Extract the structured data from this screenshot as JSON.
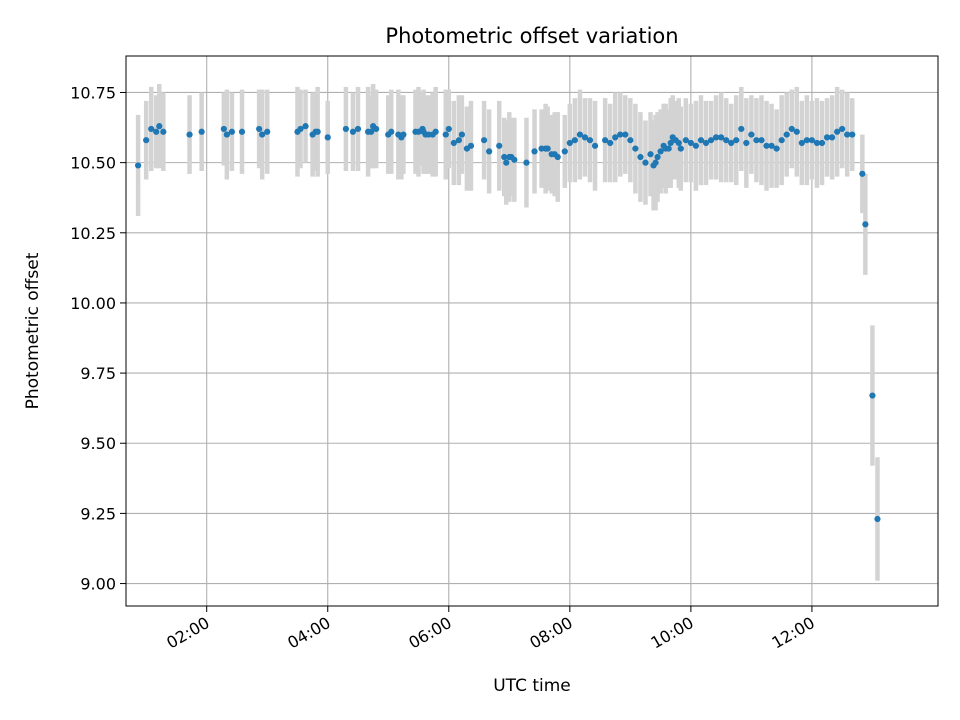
{
  "chart_data": {
    "type": "scatter",
    "title": "Photometric offset variation",
    "xlabel": "UTC time",
    "ylabel": "Photometric offset",
    "xlim": [
      "00:40",
      "14:05"
    ],
    "ylim": [
      8.92,
      10.88
    ],
    "grid": true,
    "x_ticks": [
      "02:00",
      "04:00",
      "06:00",
      "08:00",
      "10:00",
      "12:00"
    ],
    "y_ticks": [
      "9.00",
      "9.25",
      "9.50",
      "9.75",
      "10.00",
      "10.25",
      "10.50",
      "10.75"
    ],
    "colors": {
      "point": "#1f77b4",
      "errorbar": "#d3d3d3",
      "grid": "#b0b0b0"
    },
    "series": [
      {
        "x": [
          "00:52",
          "01:00",
          "01:05",
          "01:10",
          "01:13",
          "01:17",
          "01:43",
          "01:55",
          "02:17",
          "02:20",
          "02:25",
          "02:35",
          "02:52",
          "02:55",
          "03:00",
          "03:30",
          "03:33",
          "03:38",
          "03:45",
          "03:48",
          "03:50",
          "04:00",
          "04:18",
          "04:25",
          "04:30",
          "04:40",
          "04:43",
          "04:45",
          "04:48",
          "05:00",
          "05:03",
          "05:10",
          "05:13",
          "05:15",
          "05:27",
          "05:30",
          "05:34",
          "05:35",
          "05:37",
          "05:40",
          "05:44",
          "05:47",
          "05:57",
          "06:00",
          "06:05",
          "06:10",
          "06:13",
          "06:18",
          "06:22",
          "06:35",
          "06:40",
          "06:50",
          "06:55",
          "06:57",
          "07:00",
          "07:02",
          "07:05",
          "07:17",
          "07:25",
          "07:32",
          "07:36",
          "07:38",
          "07:42",
          "07:45",
          "07:48",
          "07:55",
          "08:00",
          "08:05",
          "08:10",
          "08:15",
          "08:20",
          "08:25",
          "08:35",
          "08:40",
          "08:45",
          "08:50",
          "08:55",
          "09:00",
          "09:05",
          "09:10",
          "09:15",
          "09:20",
          "09:23",
          "09:25",
          "09:27",
          "09:30",
          "09:33",
          "09:35",
          "09:38",
          "09:40",
          "09:42",
          "09:45",
          "09:48",
          "09:50",
          "09:55",
          "10:00",
          "10:05",
          "10:10",
          "10:15",
          "10:20",
          "10:25",
          "10:30",
          "10:35",
          "10:40",
          "10:45",
          "10:50",
          "10:55",
          "11:00",
          "11:05",
          "11:10",
          "11:15",
          "11:20",
          "11:25",
          "11:30",
          "11:35",
          "11:40",
          "11:45",
          "11:50",
          "11:55",
          "12:00",
          "12:05",
          "12:10",
          "12:15",
          "12:20",
          "12:25",
          "12:30",
          "12:35",
          "12:40",
          "12:50",
          "12:53",
          "13:00",
          "13:05"
        ],
        "y": [
          10.49,
          10.58,
          10.62,
          10.61,
          10.63,
          10.61,
          10.6,
          10.61,
          10.62,
          10.6,
          10.61,
          10.61,
          10.62,
          10.6,
          10.61,
          10.61,
          10.62,
          10.63,
          10.6,
          10.61,
          10.61,
          10.59,
          10.62,
          10.61,
          10.62,
          10.61,
          10.61,
          10.63,
          10.62,
          10.6,
          10.61,
          10.6,
          10.59,
          10.6,
          10.61,
          10.61,
          10.62,
          10.61,
          10.6,
          10.6,
          10.6,
          10.61,
          10.6,
          10.62,
          10.57,
          10.58,
          10.6,
          10.55,
          10.56,
          10.58,
          10.54,
          10.56,
          10.52,
          10.5,
          10.52,
          10.52,
          10.51,
          10.5,
          10.54,
          10.55,
          10.55,
          10.55,
          10.53,
          10.53,
          10.52,
          10.54,
          10.57,
          10.58,
          10.6,
          10.59,
          10.58,
          10.56,
          10.58,
          10.57,
          10.59,
          10.6,
          10.6,
          10.58,
          10.55,
          10.52,
          10.5,
          10.53,
          10.49,
          10.5,
          10.52,
          10.54,
          10.56,
          10.55,
          10.55,
          10.57,
          10.59,
          10.58,
          10.57,
          10.55,
          10.58,
          10.57,
          10.56,
          10.58,
          10.57,
          10.58,
          10.59,
          10.59,
          10.58,
          10.57,
          10.58,
          10.62,
          10.57,
          10.6,
          10.58,
          10.58,
          10.56,
          10.56,
          10.55,
          10.58,
          10.6,
          10.62,
          10.61,
          10.57,
          10.58,
          10.58,
          10.57,
          10.57,
          10.59,
          10.59,
          10.61,
          10.62,
          10.6,
          10.6,
          10.46,
          10.28,
          9.67,
          9.23
        ],
        "yerr": [
          0.18,
          0.14,
          0.15,
          0.13,
          0.15,
          0.14,
          0.14,
          0.14,
          0.13,
          0.16,
          0.14,
          0.15,
          0.14,
          0.16,
          0.15,
          0.16,
          0.14,
          0.13,
          0.15,
          0.14,
          0.16,
          0.13,
          0.15,
          0.14,
          0.15,
          0.16,
          0.13,
          0.15,
          0.14,
          0.14,
          0.15,
          0.16,
          0.15,
          0.14,
          0.15,
          0.16,
          0.13,
          0.15,
          0.14,
          0.14,
          0.15,
          0.16,
          0.16,
          0.14,
          0.15,
          0.16,
          0.14,
          0.15,
          0.16,
          0.14,
          0.15,
          0.16,
          0.14,
          0.15,
          0.16,
          0.14,
          0.15,
          0.16,
          0.15,
          0.14,
          0.16,
          0.15,
          0.14,
          0.15,
          0.16,
          0.13,
          0.14,
          0.15,
          0.16,
          0.14,
          0.15,
          0.16,
          0.15,
          0.14,
          0.16,
          0.15,
          0.14,
          0.15,
          0.16,
          0.16,
          0.15,
          0.15,
          0.16,
          0.17,
          0.16,
          0.15,
          0.15,
          0.16,
          0.14,
          0.16,
          0.15,
          0.14,
          0.16,
          0.15,
          0.15,
          0.14,
          0.16,
          0.16,
          0.15,
          0.14,
          0.15,
          0.16,
          0.15,
          0.14,
          0.16,
          0.15,
          0.16,
          0.14,
          0.15,
          0.16,
          0.16,
          0.15,
          0.14,
          0.16,
          0.15,
          0.14,
          0.16,
          0.15,
          0.16,
          0.14,
          0.16,
          0.15,
          0.14,
          0.15,
          0.16,
          0.14,
          0.15,
          0.13,
          0.14,
          0.18,
          0.25,
          0.22
        ]
      }
    ]
  }
}
